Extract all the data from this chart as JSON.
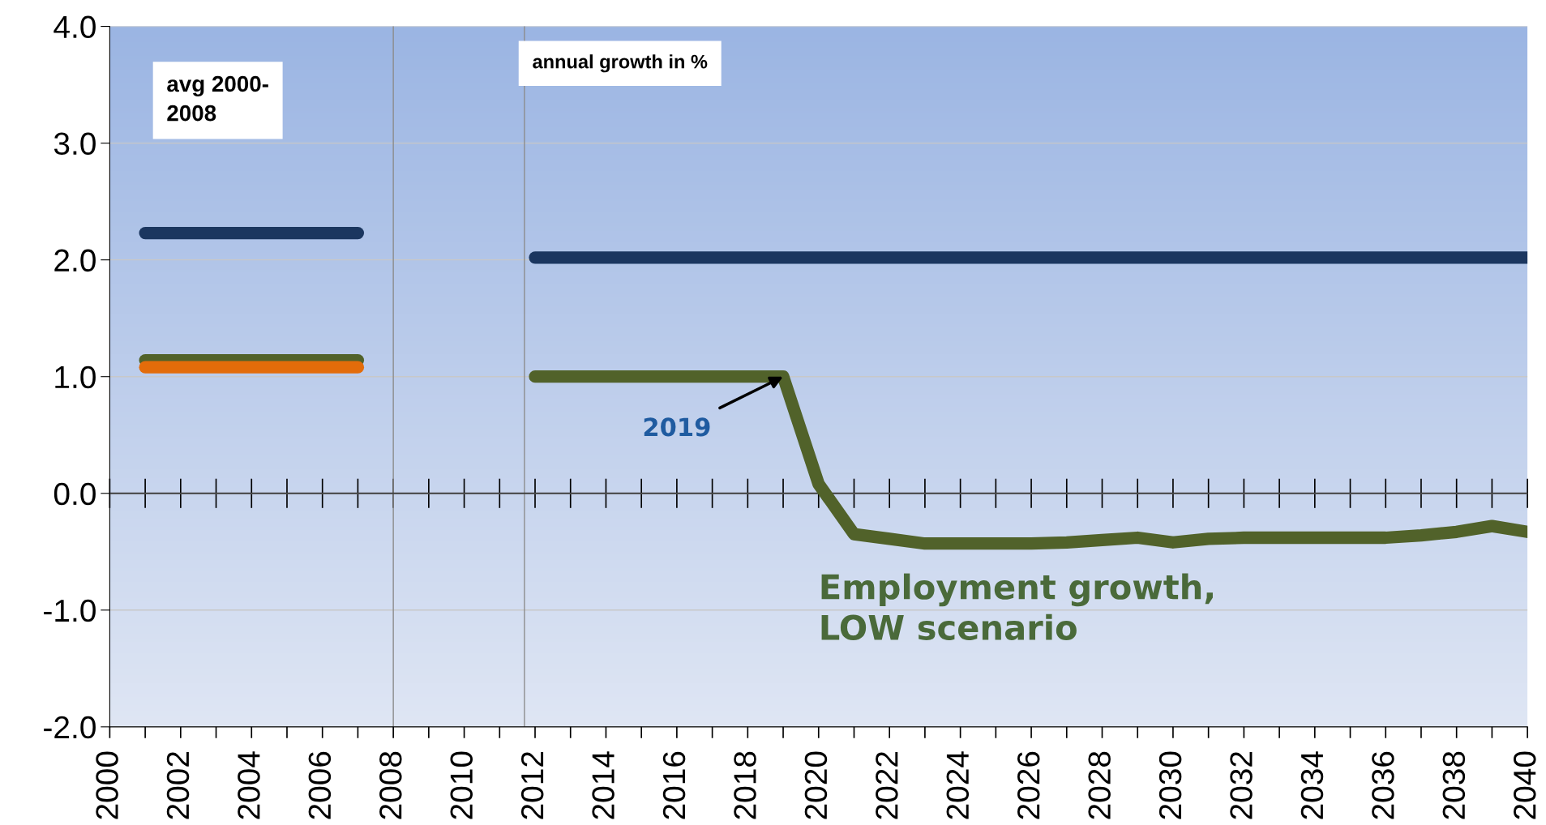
{
  "chart_data": {
    "type": "line",
    "series": [
      {
        "color": "#1b365f",
        "x": [
          2001,
          2007
        ],
        "values": [
          2.23,
          2.23
        ]
      },
      {
        "color": "#51622a",
        "x": [
          2001,
          2007
        ],
        "values": [
          1.14,
          1.14
        ]
      },
      {
        "color": "#e36c0a",
        "x": [
          2001,
          2007
        ],
        "values": [
          1.08,
          1.08
        ]
      },
      {
        "color": "#1b365f",
        "x": [
          2012,
          2040
        ],
        "values": [
          2.02,
          2.02
        ]
      },
      {
        "name": "Employment growth,\nLOW scenario",
        "color": "#51622a",
        "x": [
          2012,
          2013,
          2014,
          2015,
          2016,
          2017,
          2018,
          2019,
          2020,
          2021,
          2022,
          2023,
          2024,
          2025,
          2026,
          2027,
          2028,
          2029,
          2030,
          2031,
          2032,
          2033,
          2034,
          2035,
          2036,
          2037,
          2038,
          2039,
          2040
        ],
        "values": [
          1.0,
          1.0,
          1.0,
          1.0,
          1.0,
          1.0,
          1.0,
          1.0,
          0.08,
          -0.35,
          -0.39,
          -0.43,
          -0.43,
          -0.43,
          -0.43,
          -0.42,
          -0.4,
          -0.38,
          -0.42,
          -0.39,
          -0.38,
          -0.38,
          -0.38,
          -0.38,
          -0.38,
          -0.36,
          -0.33,
          -0.28,
          -0.33
        ]
      }
    ],
    "annotations": [
      "avg 2000-\n2008",
      "annual growth in %",
      {
        "text": "2019",
        "x": 2019,
        "y": 1.0
      }
    ],
    "ref_lines": [
      {
        "axis": "x",
        "value": 2008,
        "color": "#8c8c8c",
        "line_style": "solid"
      },
      {
        "axis": "x",
        "value": 2011.7,
        "color": "#8c8c8c",
        "line_style": "solid"
      },
      {
        "axis": "y",
        "value": 0,
        "color": "#404040",
        "line_style": "solid"
      }
    ],
    "xlim": [
      2000,
      2040
    ],
    "xticks": [
      2000,
      {
        "value": 2001,
        "label": null
      },
      2002,
      {
        "value": 2003,
        "label": null
      },
      2004,
      {
        "value": 2005,
        "label": null
      },
      2006,
      {
        "value": 2007,
        "label": null
      },
      2008,
      {
        "value": 2009,
        "label": null
      },
      2010,
      {
        "value": 2011,
        "label": null
      },
      2012,
      {
        "value": 2013,
        "label": null
      },
      2014,
      {
        "value": 2015,
        "label": null
      },
      2016,
      {
        "value": 2017,
        "label": null
      },
      2018,
      {
        "value": 2019,
        "label": null
      },
      2020,
      {
        "value": 2021,
        "label": null
      },
      2022,
      {
        "value": 2023,
        "label": null
      },
      2024,
      {
        "value": 2025,
        "label": null
      },
      2026,
      {
        "value": 2027,
        "label": null
      },
      2028,
      {
        "value": 2029,
        "label": null
      },
      2030,
      {
        "value": 2031,
        "label": null
      },
      2032,
      {
        "value": 2033,
        "label": null
      },
      2034,
      {
        "value": 2035,
        "label": null
      },
      2036,
      {
        "value": 2037,
        "label": null
      },
      2038,
      {
        "value": 2039,
        "label": null
      },
      2040
    ],
    "ylim": [
      -2,
      4
    ],
    "yticks": [
      {
        "value": -2,
        "label": "-2.0"
      },
      {
        "value": -1,
        "label": "-1.0"
      },
      {
        "value": 0,
        "label": "0.0"
      },
      {
        "value": 1,
        "label": "1.0"
      },
      {
        "value": 2,
        "label": "2.0"
      },
      {
        "value": 3,
        "label": "3.0"
      },
      {
        "value": 4,
        "label": "4.0"
      }
    ],
    "grid": "y",
    "legend": false,
    "marker": "none",
    "line_style": "solid"
  }
}
